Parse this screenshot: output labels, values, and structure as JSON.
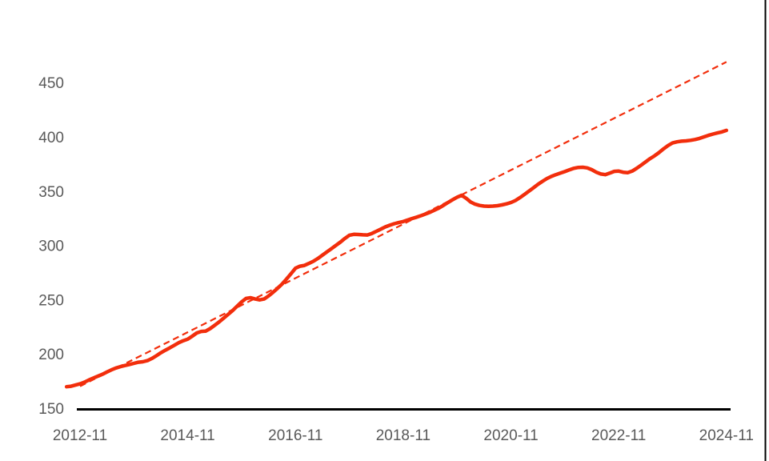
{
  "figure": {
    "title": "",
    "legend": "none",
    "background_color": "#FFFFFF"
  },
  "colors": {
    "series_line": "#F22E0C",
    "trend_line": "#F22E0C",
    "axis_line": "#000000",
    "tick_label": "#595959",
    "window_right_border": "#000000"
  },
  "chart_data": {
    "type": "line",
    "title": "",
    "xlabel": "",
    "ylabel": "",
    "grid": false,
    "legend_position": "none",
    "x_axis": {
      "tick_labels": [
        "2012-11",
        "2014-11",
        "2016-11",
        "2018-11",
        "2020-11",
        "2022-11",
        "2024-11"
      ],
      "tick_month_positions": [
        0,
        24,
        48,
        72,
        96,
        120,
        144
      ],
      "unit": "year-month, monthly data"
    },
    "y_axis": {
      "ticks": [
        150,
        200,
        250,
        300,
        350,
        400,
        450
      ],
      "ylim": [
        150,
        480
      ]
    },
    "first_point_month_offset": -3,
    "series": [
      {
        "name": "actual-series",
        "style": "solid",
        "start_month": "2012-08",
        "interval_months": 1,
        "values": [
          169.8,
          170.2,
          171.3,
          172.4,
          174,
          176,
          177.8,
          179.6,
          181.3,
          183.3,
          185.3,
          187,
          188.3,
          189.3,
          190.3,
          191.3,
          192.3,
          192.8,
          193.8,
          195.8,
          198.3,
          201,
          203.4,
          205.6,
          208,
          210.3,
          212.2,
          213.6,
          216.4,
          219.3,
          220.7,
          221,
          223.4,
          226.4,
          229.5,
          233,
          236.4,
          240,
          244,
          248,
          251.2,
          251.8,
          250.6,
          249.8,
          250.6,
          253.4,
          256.8,
          260.4,
          264.4,
          269,
          274,
          279,
          280.8,
          281.6,
          283.4,
          285.4,
          288,
          291,
          294,
          297,
          300,
          303,
          306.4,
          309.4,
          310.2,
          310,
          309.7,
          309.6,
          311,
          313,
          315,
          317,
          318.6,
          320,
          321,
          322,
          323.4,
          324.8,
          326,
          327.4,
          329,
          330.6,
          332.5,
          334.5,
          337,
          339.6,
          342,
          344.4,
          346.2,
          343.4,
          340,
          338,
          336.8,
          336.2,
          336,
          336.2,
          336.6,
          337.3,
          338.3,
          339.5,
          341.4,
          344,
          347,
          350,
          353,
          356.2,
          359,
          361.6,
          363.6,
          365.2,
          366.6,
          368,
          369.6,
          371,
          371.8,
          372,
          371.4,
          369.8,
          367.4,
          365.8,
          365.2,
          366.6,
          368.2,
          368.4,
          367.4,
          367,
          368.4,
          371,
          374,
          377,
          380,
          382.6,
          385.6,
          389,
          392,
          394.4,
          395.4,
          396,
          396.3,
          396.8,
          397.6,
          398.6,
          400,
          401.4,
          402.6,
          403.6,
          404.6,
          406
        ]
      },
      {
        "name": "trend-series",
        "style": "dashed",
        "start_month_position": 0,
        "end_month_position": 144,
        "start_value": 170.2,
        "end_value": 469
      }
    ]
  }
}
